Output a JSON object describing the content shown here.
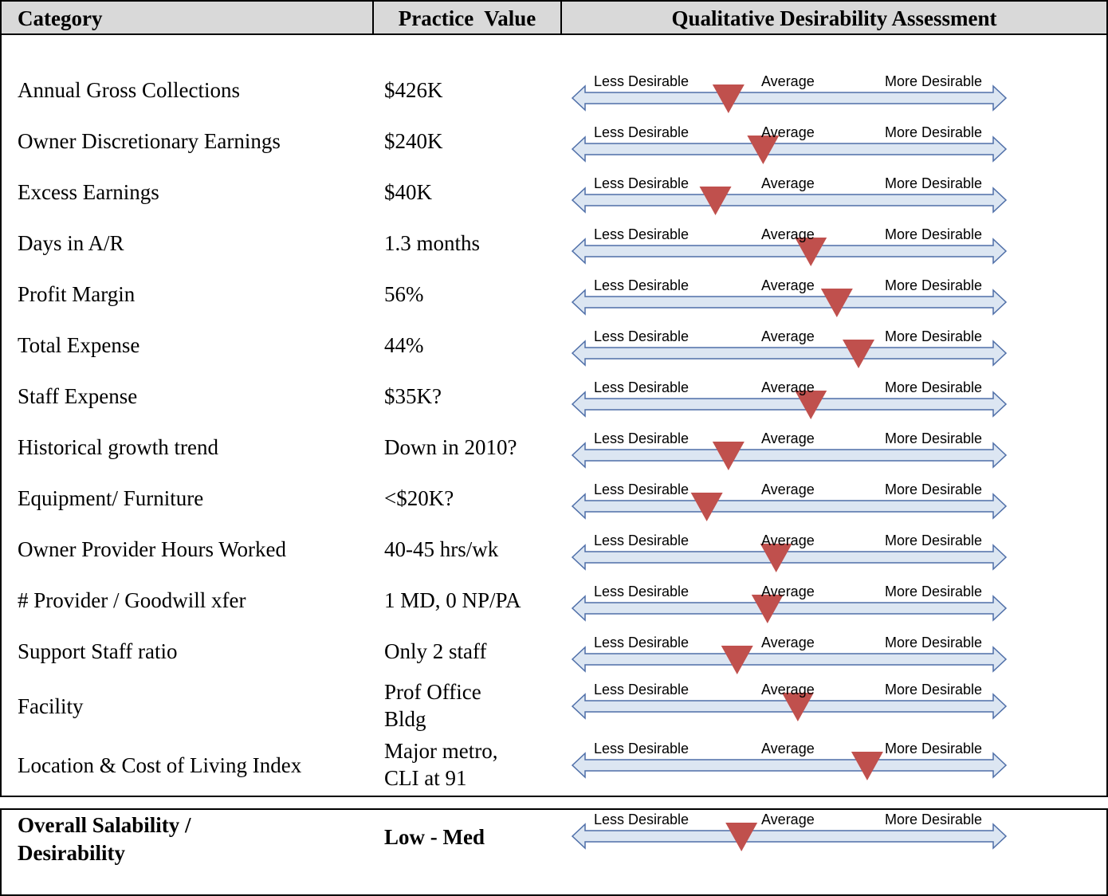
{
  "header": [
    "Category",
    "Practice  Value",
    "Qualitative Desirability Assessment"
  ],
  "scale_labels": [
    "Less Desirable",
    "Average",
    "More Desirable"
  ],
  "rows": [
    {
      "category": "Annual Gross Collections",
      "value": [
        "$426K"
      ],
      "rating": 36
    },
    {
      "category": "Owner Discretionary Earnings",
      "value": [
        "$240K"
      ],
      "rating": 44
    },
    {
      "category": "Excess Earnings",
      "value": [
        "$40K"
      ],
      "rating": 33
    },
    {
      "category": "Days in A/R",
      "value": [
        "1.3 months"
      ],
      "rating": 55
    },
    {
      "category": "Profit Margin",
      "value": [
        "56%"
      ],
      "rating": 61
    },
    {
      "category": "Total Expense",
      "value": [
        "44%"
      ],
      "rating": 66
    },
    {
      "category": "Staff Expense",
      "value": [
        "$35K?"
      ],
      "rating": 55
    },
    {
      "category": "Historical growth trend",
      "value": [
        "Down in 2010?"
      ],
      "rating": 36
    },
    {
      "category": "Equipment/ Furniture",
      "value": [
        "<$20K?"
      ],
      "rating": 31
    },
    {
      "category": "Owner Provider Hours Worked",
      "value": [
        "40-45 hrs/wk"
      ],
      "rating": 47
    },
    {
      "category": "# Provider / Goodwill xfer",
      "value": [
        "1 MD, 0 NP/PA"
      ],
      "rating": 45
    },
    {
      "category": "Support Staff ratio",
      "value": [
        "Only 2 staff"
      ],
      "rating": 38
    },
    {
      "category": "Facility",
      "value": [
        "Prof Office",
        "Bldg"
      ],
      "rating": 52
    },
    {
      "category": "Location & Cost of Living Index",
      "value": [
        "Major metro,",
        "CLI at 91"
      ],
      "rating": 68
    }
  ],
  "overall": {
    "category": [
      "Overall Salability /",
      "Desirability"
    ],
    "value": "Low - Med",
    "rating": 39
  }
}
